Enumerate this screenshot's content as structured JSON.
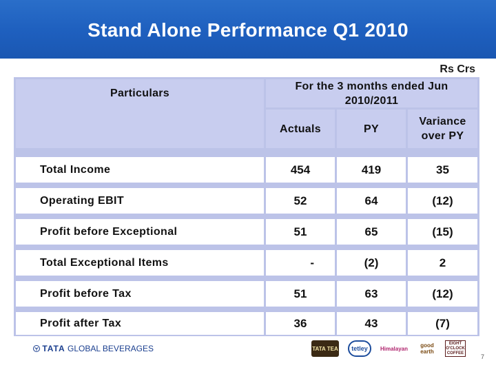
{
  "slide": {
    "title": "Stand Alone Performance Q1 2010",
    "unit": "Rs Crs",
    "page_number": "7"
  },
  "table": {
    "header_particulars": "Particulars",
    "header_period": "For the 3 months ended Jun 2010/2011",
    "col_actuals": "Actuals",
    "col_py": "PY",
    "col_variance": "Variance over PY",
    "rows": [
      {
        "label": "Total Income",
        "actuals": "454",
        "py": "419",
        "variance": "35"
      },
      {
        "label": "Operating EBIT",
        "actuals": "52",
        "py": "64",
        "variance": "(12)"
      },
      {
        "label": "Profit before Exceptional",
        "actuals": "51",
        "py": "65",
        "variance": "(15)"
      },
      {
        "label": "Total Exceptional Items",
        "actuals": "-",
        "py": "(2)",
        "variance": "2"
      },
      {
        "label": "Profit before Tax",
        "actuals": "51",
        "py": "63",
        "variance": "(12)"
      },
      {
        "label": "Profit after Tax",
        "actuals": "36",
        "py": "43",
        "variance": "(7)"
      }
    ]
  },
  "footer": {
    "company_brand": "TATA",
    "company_name": "GLOBAL BEVERAGES",
    "logos": [
      "TATA TEA",
      "tetley",
      "Himalayan",
      "good earth",
      "EIGHT O'CLOCK COFFEE"
    ]
  },
  "colors": {
    "header_blue": "#1e5fbe",
    "grid": "#bcc3e8",
    "header_cell": "#c8cdef"
  }
}
